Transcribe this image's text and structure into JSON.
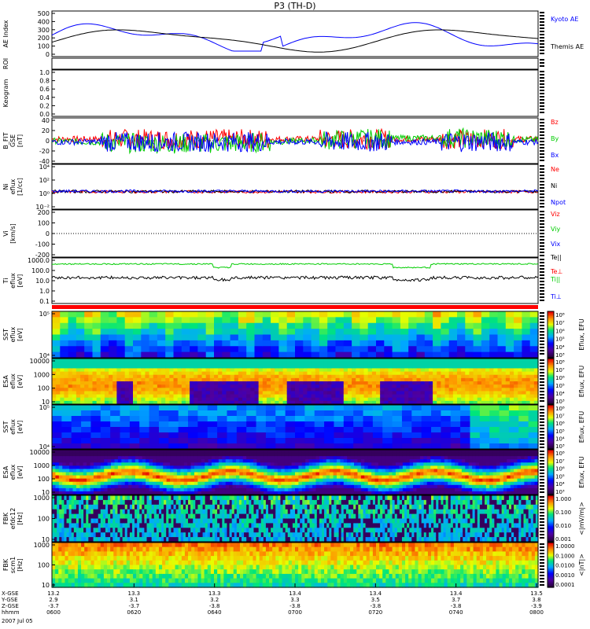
{
  "chart_data": {
    "title": "P3 (TH-D)",
    "date": "2007 Jul 05",
    "type": "line",
    "time_axis": {
      "tick_labels": [
        "0600",
        "0620",
        "0640",
        "0700",
        "0720",
        "0740",
        "0800"
      ],
      "row_labels": [
        "X-GSE",
        "Y-GSE",
        "Z-GSE",
        "hhmm"
      ],
      "rows": [
        [
          "13.2",
          "13.3",
          "13.3",
          "13.4",
          "13.4",
          "13.4",
          "13.5"
        ],
        [
          "2.9",
          "3.1",
          "3.2",
          "3.3",
          "3.5",
          "3.7",
          "3.8"
        ],
        [
          "-3.7",
          "-3.7",
          "-3.8",
          "-3.8",
          "-3.8",
          "-3.8",
          "-3.9"
        ]
      ]
    },
    "panels": [
      {
        "id": "ae",
        "ylabel": "AE Index",
        "yticks": [
          "0",
          "100",
          "200",
          "300",
          "400",
          "500"
        ],
        "series": [
          {
            "name": "Kyoto AE",
            "color": "#0000ff"
          },
          {
            "name": "Themis AE",
            "color": "#000000"
          }
        ],
        "ylim": [
          0,
          500
        ]
      },
      {
        "id": "roi",
        "ylabel": "ROI"
      },
      {
        "id": "keogram",
        "ylabel": "Keogram",
        "yticks": [
          "0.0",
          "0.2",
          "0.4",
          "0.6",
          "0.8",
          "1.0"
        ],
        "ylim": [
          0,
          1
        ]
      },
      {
        "id": "bfit",
        "ylabel": "B_FIT\nGSE\n[nT]",
        "yticks": [
          "-40",
          "-20",
          "0",
          "20",
          "40"
        ],
        "ylim": [
          -40,
          40
        ],
        "series": [
          {
            "name": "Bz",
            "color": "#ff0000"
          },
          {
            "name": "By",
            "color": "#00cc00"
          },
          {
            "name": "Bx",
            "color": "#0000ff"
          }
        ]
      },
      {
        "id": "ni",
        "ylabel": "Ni\neflux\n[1/cc]",
        "yticks": [
          "10⁻²",
          "10⁰",
          "10²",
          "10⁴"
        ],
        "ylim": [
          -3,
          5
        ],
        "ylog": true,
        "series": [
          {
            "name": "Ne",
            "color": "#ff0000"
          },
          {
            "name": "Ni",
            "color": "#000000"
          },
          {
            "name": "Npot",
            "color": "#0000ff"
          }
        ]
      },
      {
        "id": "vi",
        "ylabel": "Vi\n[km/s]",
        "yticks": [
          "-200",
          "-100",
          "0",
          "100",
          "200"
        ],
        "ylim": [
          -250,
          250
        ],
        "series": [
          {
            "name": "Viz",
            "color": "#ff0000"
          },
          {
            "name": "Viy",
            "color": "#00cc00"
          },
          {
            "name": "Vix",
            "color": "#0000ff"
          }
        ]
      },
      {
        "id": "ti",
        "ylabel": "Ti\neflux\n[eV]",
        "yticks": [
          "0.1",
          "1.0",
          "10.0",
          "100.0",
          "1000.0"
        ],
        "ylim": [
          -1,
          3.5
        ],
        "ylog": true,
        "series": [
          {
            "name": "Te||",
            "color": "#000000"
          },
          {
            "name": "Te⊥",
            "color": "#ff0000"
          },
          {
            "name": "Ti||",
            "color": "#00cc00"
          },
          {
            "name": "Ti⊥",
            "color": "#0000ff"
          }
        ]
      },
      {
        "id": "sst_e",
        "ylabel": "SST\neflux\n[eV]",
        "yticks": [
          "10⁴",
          "10⁵"
        ],
        "cbar": "Eflux, EFU",
        "cticks": [
          "10⁸",
          "10⁷",
          "10⁶",
          "10⁵",
          "10⁴",
          "10³"
        ]
      },
      {
        "id": "esa_e",
        "ylabel": "ESA\neflux\n[eV]",
        "yticks": [
          "10",
          "100",
          "1000",
          "10000"
        ],
        "cbar": "Eflux, EFU",
        "cticks": [
          "10⁸",
          "10⁷",
          "10⁶",
          "10⁵",
          "10⁴",
          "10³"
        ]
      },
      {
        "id": "sst_i",
        "ylabel": "SST\neflux\n[eV]",
        "yticks": [
          "10⁴",
          "10⁵"
        ],
        "cbar": "Eflux, EFU",
        "cticks": [
          "10⁸",
          "10⁷",
          "10⁶",
          "10⁵",
          "10⁴",
          "10³"
        ]
      },
      {
        "id": "esa_i",
        "ylabel": "ESA\neflux\n[eV]",
        "yticks": [
          "10",
          "100",
          "1000",
          "10000"
        ],
        "cbar": "Eflux, EFU",
        "cticks": [
          "10⁸",
          "10⁷",
          "10⁶",
          "10⁵",
          "10⁴",
          "10³"
        ]
      },
      {
        "id": "fbk_e",
        "ylabel": "FBK\nefdc12\n[Hz]",
        "yticks": [
          "10",
          "100",
          "1000"
        ],
        "cbar": "<|mV/m|>",
        "cticks": [
          "1.000",
          "0.100",
          "0.010",
          "0.001"
        ]
      },
      {
        "id": "fbk_b",
        "ylabel": "FBK\nscm1\n[Hz]",
        "yticks": [
          "10",
          "100",
          "1000"
        ],
        "cbar": "<|nT|>",
        "cticks": [
          "1.0000",
          "0.1000",
          "0.0100",
          "0.0010",
          "0.0001"
        ]
      }
    ]
  },
  "colors": {
    "background": "#ffffff",
    "axis": "#000000",
    "separator": "#ff0000"
  }
}
